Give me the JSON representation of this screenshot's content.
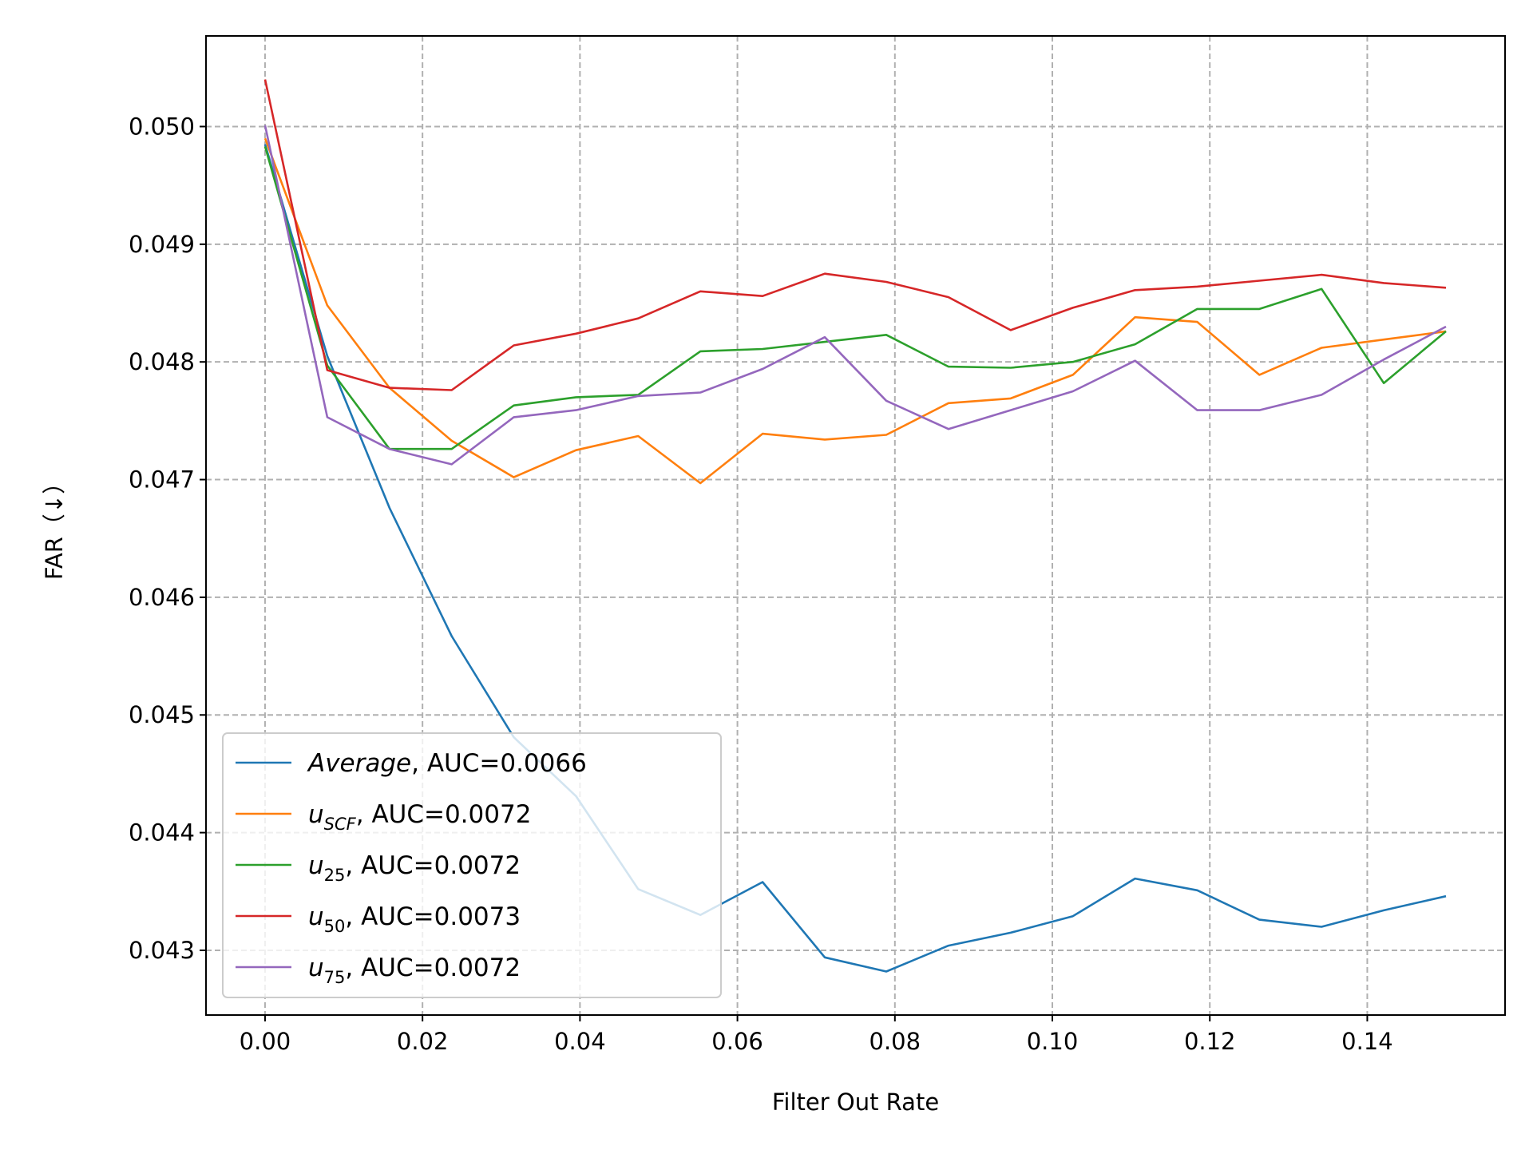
{
  "chart_data": {
    "type": "line",
    "title": "",
    "xlabel": "Filter Out Rate",
    "ylabel": "FAR（↓）",
    "xlim": [
      -0.0075,
      0.1575
    ],
    "ylim": [
      0.04245,
      0.05077
    ],
    "grid": true,
    "legend_position": "lower-left",
    "xticks": [
      0.0,
      0.02,
      0.04,
      0.06,
      0.08,
      0.1,
      0.12,
      0.14
    ],
    "xtick_labels": [
      "0.00",
      "0.02",
      "0.04",
      "0.06",
      "0.08",
      "0.10",
      "0.12",
      "0.14"
    ],
    "yticks": [
      0.043,
      0.044,
      0.045,
      0.046,
      0.047,
      0.048,
      0.049,
      0.05
    ],
    "ytick_labels": [
      "0.043",
      "0.044",
      "0.045",
      "0.046",
      "0.047",
      "0.048",
      "0.049",
      "0.050"
    ],
    "x": [
      0.0,
      0.0079,
      0.0158,
      0.0237,
      0.0316,
      0.0395,
      0.0474,
      0.0553,
      0.0632,
      0.0711,
      0.0789,
      0.0868,
      0.0947,
      0.1026,
      0.1105,
      0.1184,
      0.1263,
      0.1342,
      0.1421,
      0.15
    ],
    "series": [
      {
        "legend_main": "Average",
        "legend_sub": "",
        "legend_italic_main": true,
        "legend_auc": ", AUC=0.0066",
        "color": "#1f77b4",
        "values": [
          0.04985,
          0.04805,
          0.04676,
          0.04567,
          0.04481,
          0.04431,
          0.04352,
          0.0433,
          0.04358,
          0.04294,
          0.04282,
          0.04304,
          0.04315,
          0.04329,
          0.04361,
          0.04351,
          0.04326,
          0.0432,
          0.04334,
          0.04346
        ]
      },
      {
        "legend_main": "u",
        "legend_sub": "SCF",
        "legend_italic_main": true,
        "legend_auc": ", AUC=0.0072",
        "color": "#ff7f0e",
        "values": [
          0.0499,
          0.04848,
          0.04778,
          0.04733,
          0.04702,
          0.04725,
          0.04737,
          0.04697,
          0.04739,
          0.04734,
          0.04738,
          0.04765,
          0.04769,
          0.04789,
          0.04838,
          0.04834,
          0.04789,
          0.04812,
          0.04819,
          0.04826
        ]
      },
      {
        "legend_main": "u",
        "legend_sub": "25",
        "legend_italic_main": true,
        "legend_auc": ", AUC=0.0072",
        "color": "#2ca02c",
        "values": [
          0.04983,
          0.04797,
          0.04726,
          0.04726,
          0.04763,
          0.0477,
          0.04772,
          0.04809,
          0.04811,
          0.04817,
          0.04823,
          0.04796,
          0.04795,
          0.048,
          0.04815,
          0.04845,
          0.04845,
          0.04862,
          0.04782,
          0.04826
        ]
      },
      {
        "legend_main": "u",
        "legend_sub": "50",
        "legend_italic_main": true,
        "legend_auc": ", AUC=0.0073",
        "color": "#d62728",
        "values": [
          0.0504,
          0.04793,
          0.04778,
          0.04776,
          0.04814,
          0.04824,
          0.04837,
          0.0486,
          0.04856,
          0.04875,
          0.04868,
          0.04855,
          0.04827,
          0.04846,
          0.04861,
          0.04864,
          0.04869,
          0.04874,
          0.04867,
          0.04863
        ]
      },
      {
        "legend_main": "u",
        "legend_sub": "75",
        "legend_italic_main": true,
        "legend_auc": ", AUC=0.0072",
        "color": "#9467bd",
        "values": [
          0.05001,
          0.04753,
          0.04726,
          0.04713,
          0.04753,
          0.04759,
          0.04771,
          0.04774,
          0.04794,
          0.04821,
          0.04767,
          0.04743,
          0.04759,
          0.04775,
          0.04801,
          0.04759,
          0.04759,
          0.04772,
          0.04802,
          0.0483
        ]
      }
    ]
  }
}
